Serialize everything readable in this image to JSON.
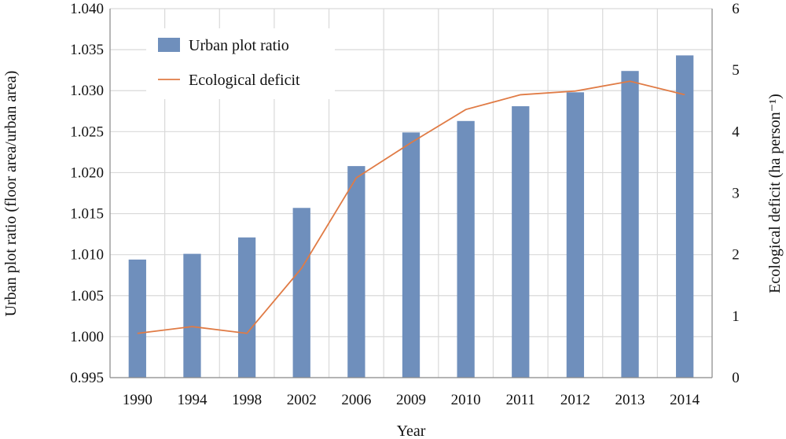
{
  "chart_data": {
    "type": "bar",
    "categories": [
      "1990",
      "1994",
      "1998",
      "2002",
      "2006",
      "2009",
      "2010",
      "2011",
      "2012",
      "2013",
      "2014"
    ],
    "series": [
      {
        "name": "Urban plot ratio",
        "type": "bar",
        "axis": "left",
        "color": "#6f8fbc",
        "values": [
          1.0094,
          1.0101,
          1.0121,
          1.0157,
          1.0208,
          1.0249,
          1.0263,
          1.0281,
          1.0298,
          1.0324,
          1.0343
        ]
      },
      {
        "name": "Ecological deficit",
        "type": "line",
        "axis": "right",
        "color": "#e07b45",
        "values": [
          0.72,
          0.83,
          0.72,
          1.78,
          3.25,
          3.82,
          4.36,
          4.6,
          4.66,
          4.82,
          4.6
        ]
      }
    ],
    "xlabel": "Year",
    "ylabel": "Urban plot ratio (floor area/urban area)",
    "y2label": "Ecological deficit (ha person⁻¹)",
    "ylim": [
      0.995,
      1.04
    ],
    "y2lim": [
      0,
      6
    ],
    "yticks": [
      "0.995",
      "1.000",
      "1.005",
      "1.010",
      "1.015",
      "1.020",
      "1.025",
      "1.030",
      "1.035",
      "1.040"
    ],
    "y2ticks": [
      "0",
      "1",
      "2",
      "3",
      "4",
      "5",
      "6"
    ],
    "grid": true,
    "legend": "top-left"
  }
}
